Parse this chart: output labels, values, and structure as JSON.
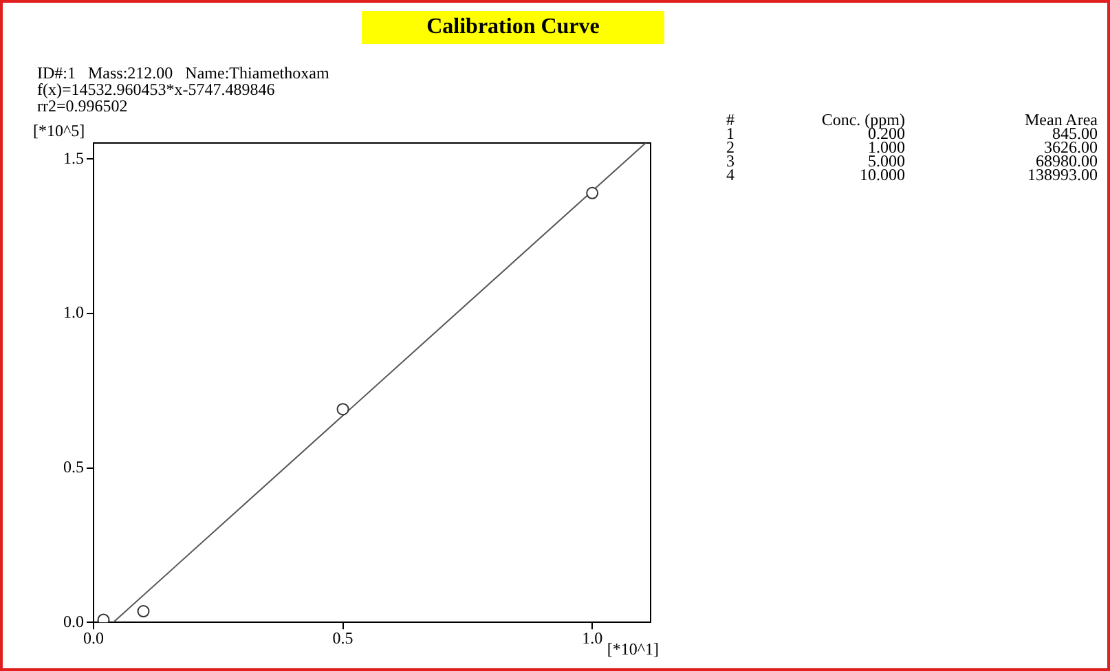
{
  "chart_data": {
    "type": "scatter",
    "title": "Calibration Curve",
    "xlabel": "[*10^1]",
    "ylabel": "[*10^5]",
    "series": [
      {
        "color": "#333333",
        "x": [
          0.02,
          0.1,
          0.5,
          1.0
        ],
        "values": [
          0.008,
          0.036,
          0.69,
          1.39
        ],
        "marker": "circle"
      },
      {
        "type": "line",
        "color": "#555555",
        "x": [
          0.0396,
          1.107
        ],
        "values": [
          0,
          1.552
        ],
        "marker": "none"
      }
    ],
    "xlim": [
      0,
      1.117
    ],
    "ylim": [
      0,
      1.552
    ],
    "xticks": [
      {
        "value": 0,
        "label": "0.0"
      },
      {
        "value": 0.5,
        "label": "0.5"
      },
      {
        "value": 1,
        "label": "1.0"
      }
    ],
    "yticks": [
      {
        "value": 0,
        "label": "0.0"
      },
      {
        "value": 0.5,
        "label": "0.5"
      },
      {
        "value": 1,
        "label": "1.0"
      },
      {
        "value": 1.5,
        "label": "1.5"
      }
    ],
    "grid": false,
    "legend": false,
    "annotations": [
      "ID#:1   Mass:212.00   Name:Thiamethoxam",
      "f(x)=14532.960453*x-5747.489846",
      "rr2=0.996502",
      "#\tConc. (ppm)\tMean Area",
      "1\t0.200\t845.00",
      "2\t1.000\t3626.00",
      "3\t5.000\t68980.00",
      "4\t10.000\t138993.00"
    ]
  }
}
